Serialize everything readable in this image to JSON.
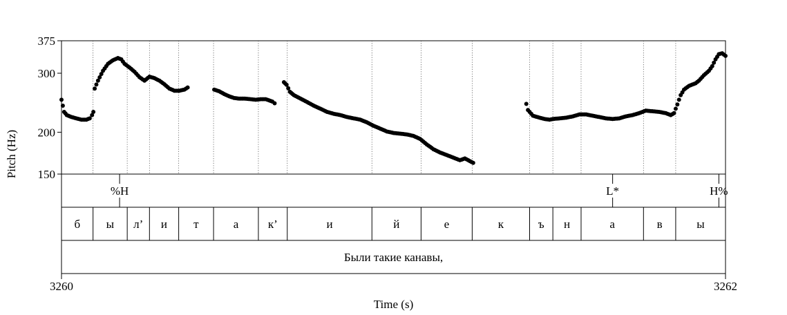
{
  "chart_data": {
    "type": "scatter",
    "title": "",
    "xlabel": "Time (s)",
    "ylabel": "Pitch (Hz)",
    "xlim": [
      3260,
      3262
    ],
    "ylim": [
      150,
      375
    ],
    "y_scale": "log",
    "x_tick_labels": [
      "3260",
      "3262"
    ],
    "y_ticks": [
      {
        "value": 150,
        "label": "150"
      },
      {
        "value": 200,
        "label": "200"
      },
      {
        "value": 300,
        "label": "300"
      },
      {
        "value": 375,
        "label": "375"
      }
    ],
    "tones": [
      {
        "label": "%H",
        "time": 3260.175
      },
      {
        "label": "L*",
        "time": 3261.66
      },
      {
        "label": "H%",
        "time": 3261.98
      }
    ],
    "segments": [
      {
        "label": "б",
        "start": 3260.0,
        "end": 3260.095
      },
      {
        "label": "ы",
        "start": 3260.095,
        "end": 3260.198
      },
      {
        "label": "л’",
        "start": 3260.198,
        "end": 3260.265
      },
      {
        "label": "и",
        "start": 3260.265,
        "end": 3260.353
      },
      {
        "label": "т",
        "start": 3260.353,
        "end": 3260.458
      },
      {
        "label": "а",
        "start": 3260.458,
        "end": 3260.593
      },
      {
        "label": "к’",
        "start": 3260.593,
        "end": 3260.68
      },
      {
        "label": "и",
        "start": 3260.68,
        "end": 3260.935
      },
      {
        "label": "й",
        "start": 3260.935,
        "end": 3261.083
      },
      {
        "label": "е",
        "start": 3261.083,
        "end": 3261.237
      },
      {
        "label": "к",
        "start": 3261.237,
        "end": 3261.41
      },
      {
        "label": "ъ",
        "start": 3261.41,
        "end": 3261.48
      },
      {
        "label": "н",
        "start": 3261.48,
        "end": 3261.565
      },
      {
        "label": "а",
        "start": 3261.565,
        "end": 3261.753
      },
      {
        "label": "в",
        "start": 3261.753,
        "end": 3261.85
      },
      {
        "label": "ы",
        "start": 3261.85,
        "end": 3262.0
      }
    ],
    "phrase": {
      "label": "Были такие канавы,",
      "start": 3260.0,
      "end": 3262.0
    },
    "series": [
      {
        "name": "pitch_seg1",
        "points": [
          [
            3260.0,
            250
          ],
          [
            3260.008,
            230
          ],
          [
            3260.016,
            225
          ],
          [
            3260.03,
            222
          ],
          [
            3260.045,
            220
          ],
          [
            3260.06,
            218
          ],
          [
            3260.075,
            218
          ],
          [
            3260.085,
            220
          ],
          [
            3260.092,
            225
          ],
          [
            3260.096,
            230
          ],
          [
            3260.1,
            270
          ],
          [
            3260.11,
            285
          ],
          [
            3260.125,
            305
          ],
          [
            3260.14,
            320
          ],
          [
            3260.155,
            328
          ],
          [
            3260.17,
            333
          ],
          [
            3260.18,
            330
          ],
          [
            3260.19,
            320
          ],
          [
            3260.205,
            312
          ],
          [
            3260.22,
            303
          ],
          [
            3260.235,
            292
          ],
          [
            3260.25,
            285
          ],
          [
            3260.265,
            293
          ],
          [
            3260.28,
            290
          ],
          [
            3260.295,
            285
          ],
          [
            3260.31,
            278
          ],
          [
            3260.325,
            270
          ],
          [
            3260.34,
            266
          ],
          [
            3260.355,
            266
          ],
          [
            3260.37,
            268
          ],
          [
            3260.38,
            272
          ]
        ]
      },
      {
        "name": "pitch_seg2",
        "points": [
          [
            3260.46,
            268
          ],
          [
            3260.475,
            265
          ],
          [
            3260.49,
            260
          ],
          [
            3260.505,
            256
          ],
          [
            3260.52,
            253
          ],
          [
            3260.535,
            252
          ],
          [
            3260.55,
            252
          ],
          [
            3260.57,
            251
          ],
          [
            3260.585,
            250
          ],
          [
            3260.6,
            251
          ],
          [
            3260.615,
            251
          ],
          [
            3260.625,
            249
          ],
          [
            3260.635,
            247
          ],
          [
            3260.642,
            244
          ]
        ]
      },
      {
        "name": "pitch_seg3",
        "points": [
          [
            3260.67,
            282
          ],
          [
            3260.678,
            277
          ],
          [
            3260.688,
            264
          ],
          [
            3260.7,
            258
          ],
          [
            3260.72,
            252
          ],
          [
            3260.74,
            246
          ],
          [
            3260.76,
            240
          ],
          [
            3260.78,
            235
          ],
          [
            3260.8,
            230
          ],
          [
            3260.82,
            227
          ],
          [
            3260.84,
            225
          ],
          [
            3260.86,
            222
          ],
          [
            3260.88,
            220
          ],
          [
            3260.9,
            218
          ],
          [
            3260.92,
            214
          ],
          [
            3260.94,
            209
          ],
          [
            3260.96,
            205
          ],
          [
            3260.98,
            201
          ],
          [
            3261.0,
            199
          ],
          [
            3261.02,
            198
          ],
          [
            3261.04,
            197
          ],
          [
            3261.06,
            195
          ],
          [
            3261.08,
            191
          ],
          [
            3261.1,
            184
          ],
          [
            3261.12,
            178
          ],
          [
            3261.14,
            174
          ],
          [
            3261.16,
            171
          ],
          [
            3261.18,
            168
          ],
          [
            3261.2,
            165
          ],
          [
            3261.215,
            167
          ],
          [
            3261.23,
            164
          ],
          [
            3261.24,
            162
          ]
        ]
      },
      {
        "name": "pitch_seg4",
        "points": [
          [
            3261.4,
            243
          ],
          [
            3261.405,
            233
          ],
          [
            3261.42,
            224
          ],
          [
            3261.44,
            221
          ],
          [
            3261.455,
            219
          ],
          [
            3261.47,
            218
          ],
          [
            3261.48,
            219
          ],
          [
            3261.5,
            220
          ],
          [
            3261.52,
            221
          ],
          [
            3261.54,
            223
          ],
          [
            3261.56,
            226
          ],
          [
            3261.58,
            226
          ],
          [
            3261.6,
            224
          ],
          [
            3261.62,
            222
          ],
          [
            3261.64,
            220
          ],
          [
            3261.66,
            219
          ],
          [
            3261.68,
            220
          ],
          [
            3261.7,
            223
          ],
          [
            3261.72,
            225
          ],
          [
            3261.74,
            228
          ],
          [
            3261.76,
            232
          ],
          [
            3261.78,
            231
          ],
          [
            3261.8,
            230
          ],
          [
            3261.82,
            228
          ],
          [
            3261.835,
            225
          ],
          [
            3261.845,
            228
          ],
          [
            3261.855,
            242
          ],
          [
            3261.865,
            258
          ],
          [
            3261.875,
            268
          ],
          [
            3261.89,
            275
          ],
          [
            3261.91,
            280
          ],
          [
            3261.92,
            285
          ],
          [
            3261.935,
            296
          ],
          [
            3261.95,
            305
          ],
          [
            3261.96,
            315
          ],
          [
            3261.97,
            330
          ],
          [
            3261.98,
            342
          ],
          [
            3261.99,
            344
          ],
          [
            3262.0,
            338
          ]
        ]
      }
    ]
  }
}
